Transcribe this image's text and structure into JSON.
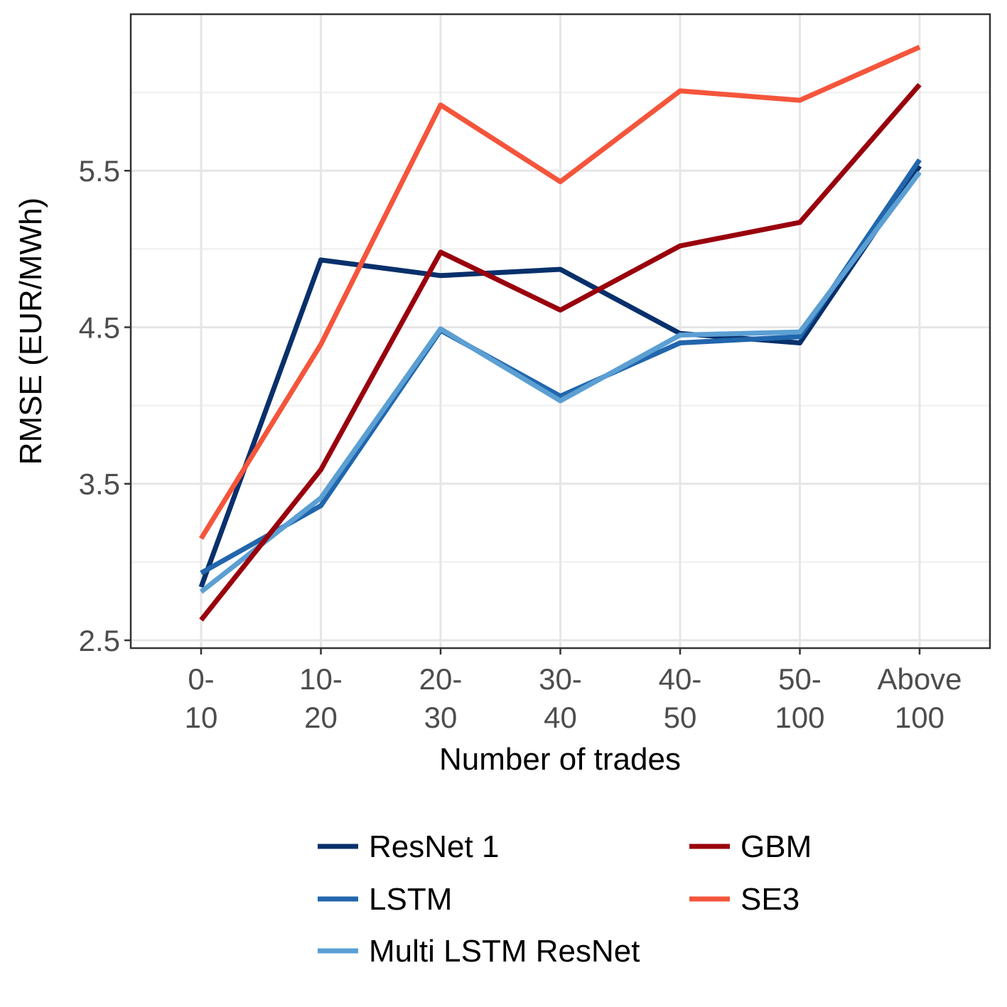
{
  "chart_data": {
    "type": "line",
    "title": "",
    "xlabel": "Number of trades",
    "ylabel": "RMSE (EUR/MWh)",
    "categories": [
      [
        "0-",
        "10"
      ],
      [
        "10-",
        "20"
      ],
      [
        "20-",
        "30"
      ],
      [
        "30-",
        "40"
      ],
      [
        "40-",
        "50"
      ],
      [
        "50-",
        "100"
      ],
      [
        "Above",
        "100"
      ]
    ],
    "ylim": [
      2.45,
      6.5
    ],
    "yticks": [
      2.5,
      3.5,
      4.5,
      5.5
    ],
    "ytick_labels": [
      "2.5",
      "3.5",
      "4.5",
      "5.5"
    ],
    "grid": true,
    "legend_position": "bottom",
    "series": [
      {
        "name": "ResNet 1",
        "color": "#08306b",
        "values": [
          2.84,
          4.93,
          4.83,
          4.87,
          4.46,
          4.4,
          5.53
        ]
      },
      {
        "name": "LSTM",
        "color": "#2166ac",
        "values": [
          2.93,
          3.36,
          4.48,
          4.06,
          4.4,
          4.44,
          5.57
        ]
      },
      {
        "name": "Multi LSTM ResNet",
        "color": "#5b9fd3",
        "values": [
          2.81,
          3.41,
          4.49,
          4.03,
          4.45,
          4.47,
          5.49
        ]
      },
      {
        "name": "GBM",
        "color": "#99000d",
        "values": [
          2.63,
          3.59,
          4.98,
          4.61,
          5.02,
          5.17,
          6.05
        ]
      },
      {
        "name": "SE3",
        "color": "#f4553b",
        "values": [
          3.15,
          4.39,
          5.92,
          5.43,
          6.01,
          5.95,
          6.29
        ]
      }
    ]
  }
}
